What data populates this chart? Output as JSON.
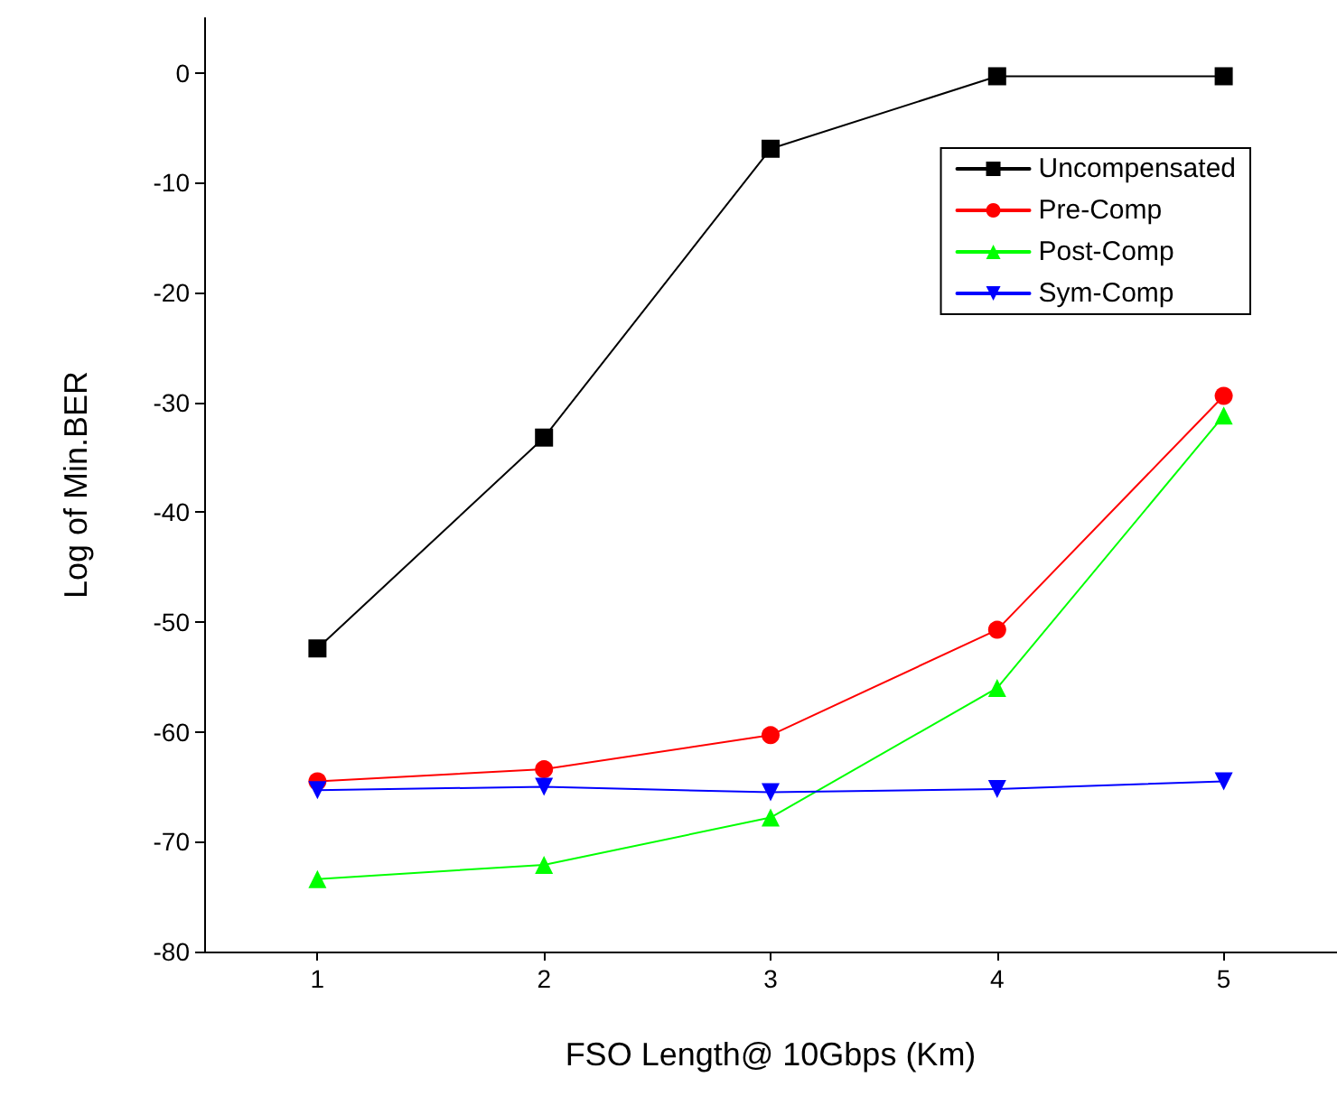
{
  "chart_data": {
    "type": "line",
    "xlabel": "FSO Length@ 10Gbps (Km)",
    "ylabel": "Log of Min.BER",
    "x": [
      1,
      2,
      3,
      4,
      5
    ],
    "series": [
      {
        "name": "Uncompensated",
        "color": "#000000",
        "marker": "square",
        "values": [
          -52.4,
          -33.2,
          -6.9,
          -0.3,
          -0.3
        ]
      },
      {
        "name": "Pre-Comp",
        "color": "#ff0000",
        "marker": "circle",
        "values": [
          -64.5,
          -63.4,
          -60.3,
          -50.7,
          -29.4
        ]
      },
      {
        "name": "Post-Comp",
        "color": "#00ff00",
        "marker": "triangle",
        "values": [
          -73.4,
          -72.1,
          -67.8,
          -56.0,
          -31.2
        ]
      },
      {
        "name": "Sym-Comp",
        "color": "#0000ff",
        "marker": "triangle-down",
        "values": [
          -65.3,
          -65.0,
          -65.5,
          -65.2,
          -64.5
        ]
      }
    ],
    "xlim": [
      0.5,
      5.5
    ],
    "xticks": [
      1,
      2,
      3,
      4,
      5
    ],
    "ylim": [
      -80,
      5
    ],
    "yticks": [
      -80,
      -70,
      -60,
      -50,
      -40,
      -30,
      -20,
      -10,
      0
    ],
    "grid": false,
    "legend": "top right",
    "line_style": "solid"
  }
}
